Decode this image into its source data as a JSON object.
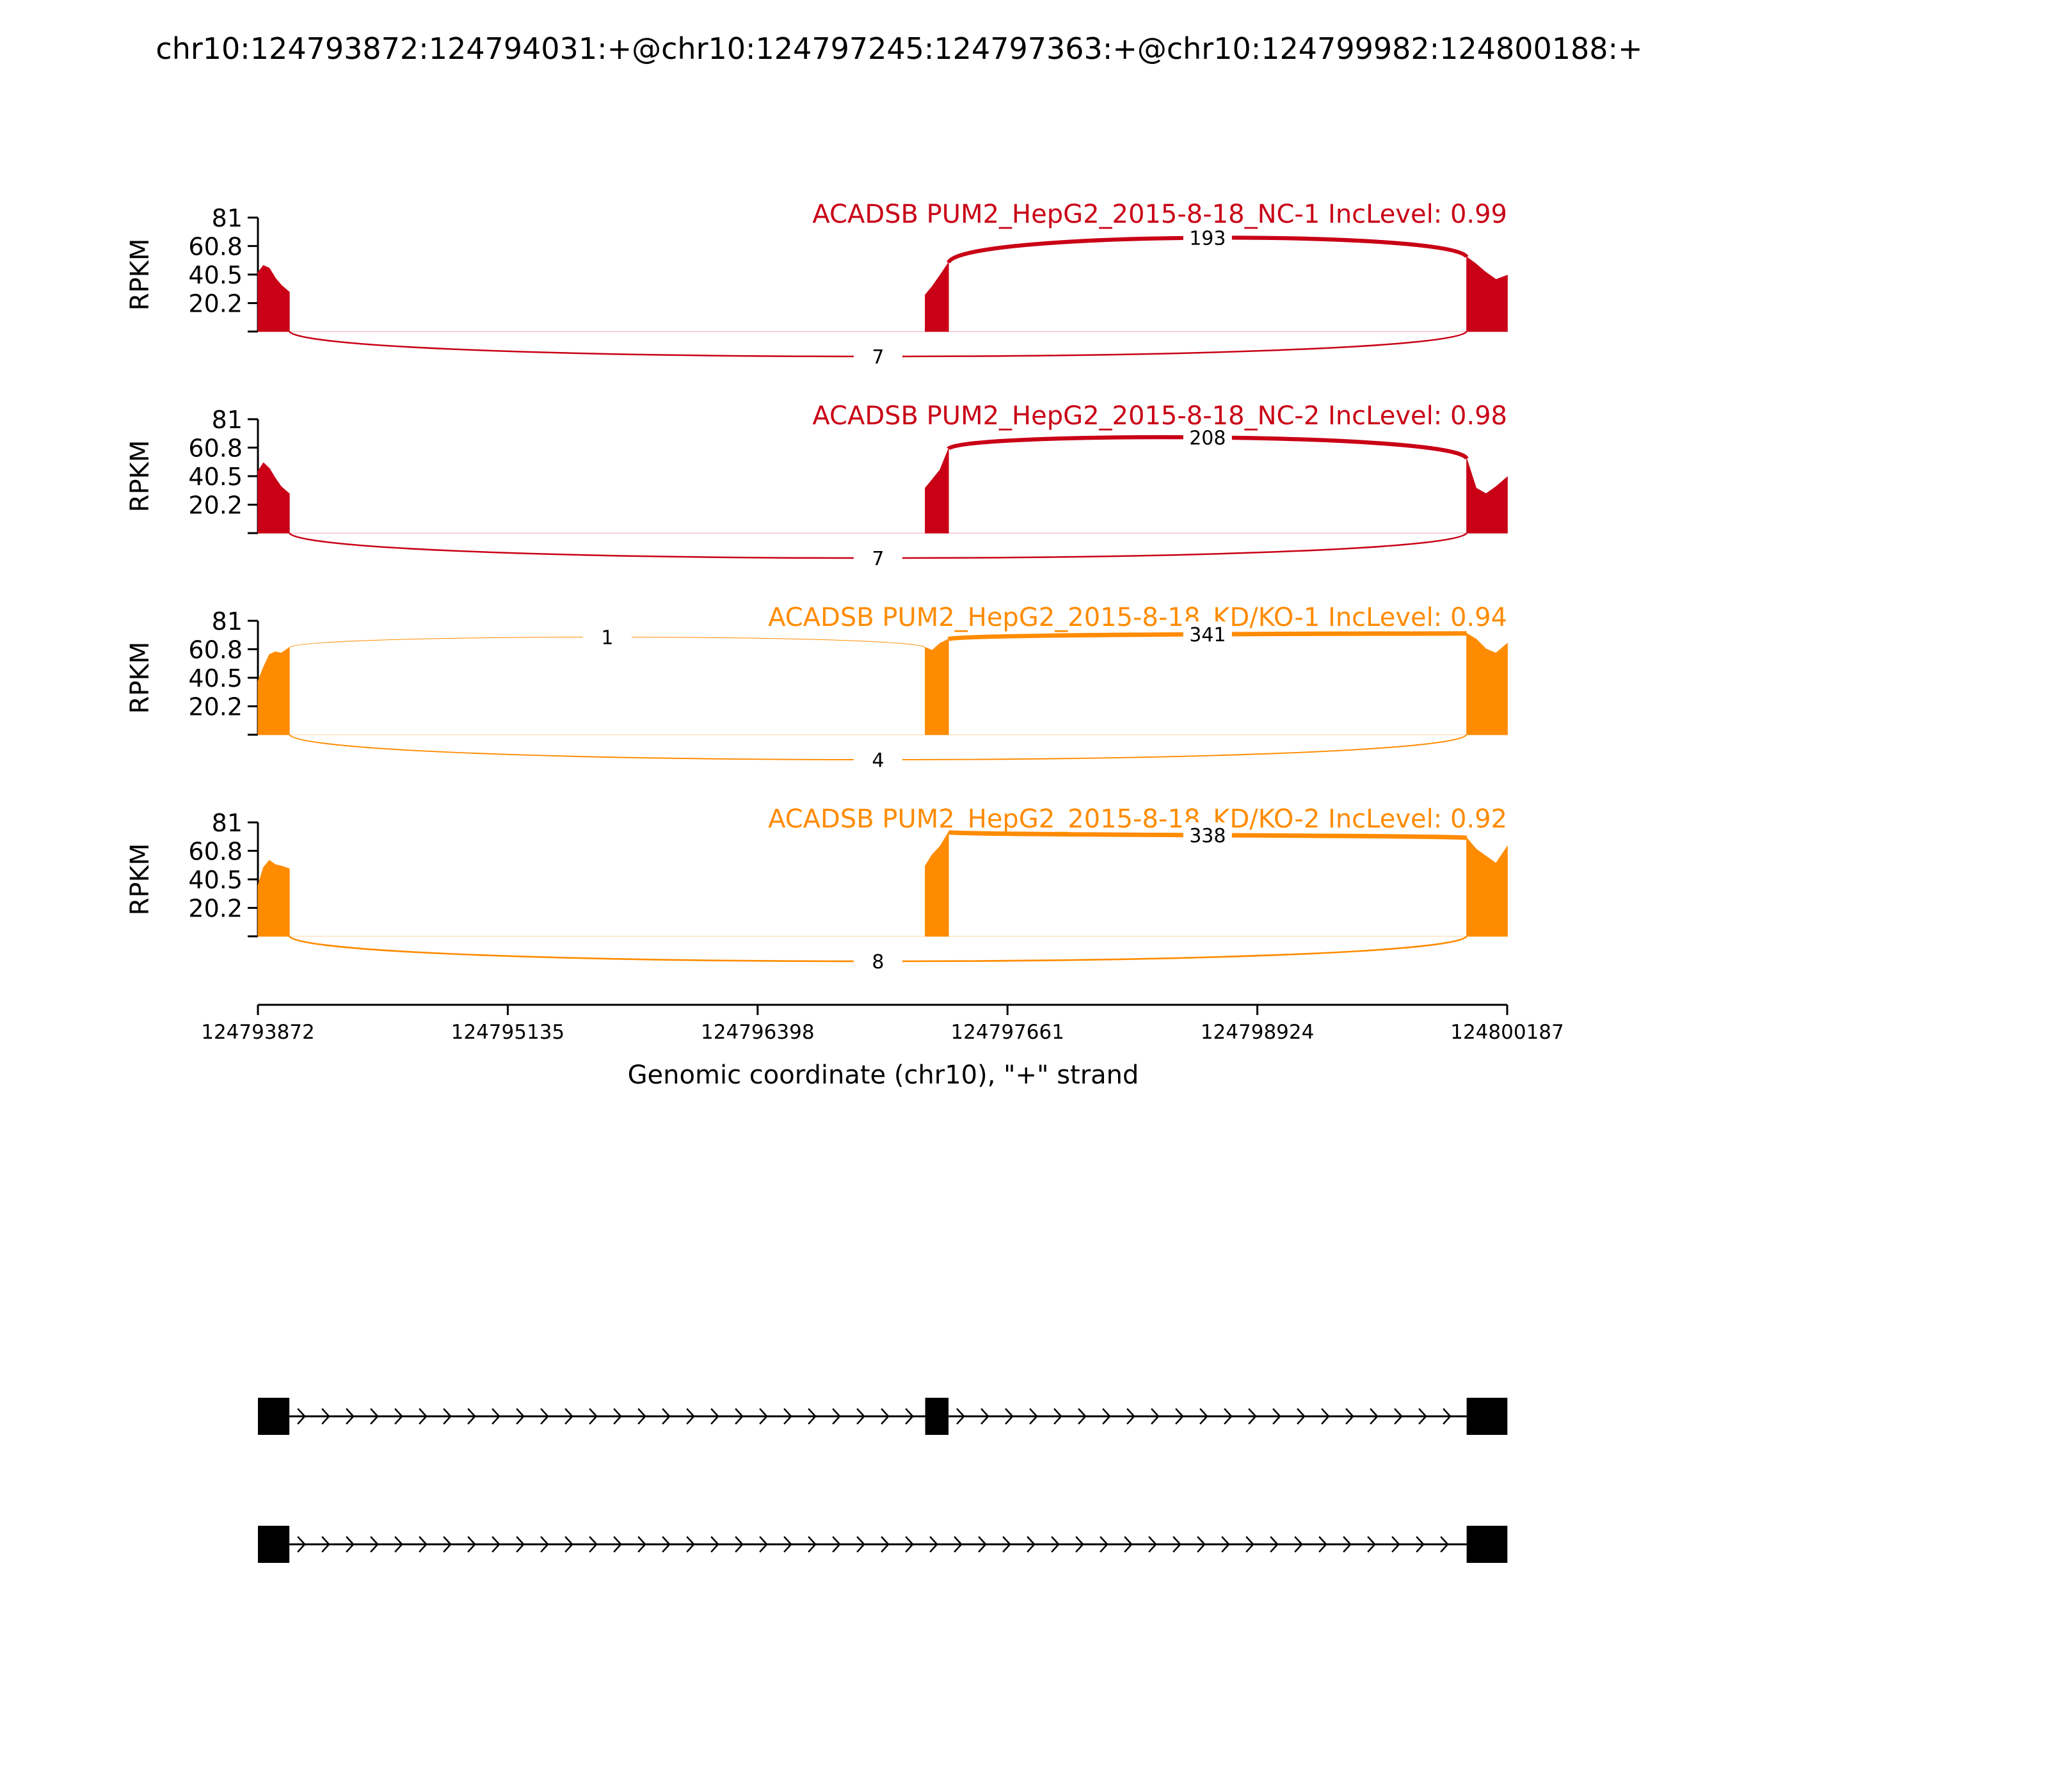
{
  "chart_data": {
    "type": "area",
    "title": "chr10:124793872:124794031:+@chr10:124797245:124797363:+@chr10:124799982:124800188:+",
    "ylabel": "RPKM",
    "xlabel": "Genomic coordinate (chr10), \"+\" strand",
    "xlim": [
      124793872,
      124800187
    ],
    "x_ticks": [
      124793872,
      124795135,
      124796398,
      124797661,
      124798924,
      124800187
    ],
    "x_tick_labels": [
      "124793872",
      "124795135",
      "124796398",
      "124797661",
      "124798924",
      "124800187"
    ],
    "ylim": [
      0,
      81
    ],
    "y_ticks": [
      20.2,
      40.5,
      60.8,
      81
    ],
    "y_tick_labels": [
      "20.2",
      "40.5",
      "60.8",
      "81"
    ],
    "exons": [
      {
        "start": 124793872,
        "end": 124794031
      },
      {
        "start": 124797245,
        "end": 124797363
      },
      {
        "start": 124799982,
        "end": 124800188
      }
    ],
    "colors": {
      "NC": "#c90016",
      "KD": "#ff8b00",
      "structure": "#000000"
    },
    "series": [
      {
        "name": "ACADSB PUM2_HepG2_2015-8-18_NC-1 IncLevel: 0.99",
        "group": "NC",
        "coverage": [
          {
            "x": 124793872,
            "y": 42
          },
          {
            "x": 124793900,
            "y": 47
          },
          {
            "x": 124793930,
            "y": 45
          },
          {
            "x": 124793960,
            "y": 38
          },
          {
            "x": 124793990,
            "y": 33
          },
          {
            "x": 124794031,
            "y": 28
          },
          {
            "x": 124797245,
            "y": 26
          },
          {
            "x": 124797280,
            "y": 32
          },
          {
            "x": 124797320,
            "y": 40
          },
          {
            "x": 124797363,
            "y": 49
          },
          {
            "x": 124799982,
            "y": 53
          },
          {
            "x": 124800030,
            "y": 48
          },
          {
            "x": 124800080,
            "y": 42
          },
          {
            "x": 124800130,
            "y": 37
          },
          {
            "x": 124800188,
            "y": 40
          }
        ],
        "junctions": [
          {
            "from": 124797363,
            "to": 124799982,
            "count": 193,
            "side": "above"
          },
          {
            "from": 124794031,
            "to": 124799982,
            "count": 7,
            "side": "below"
          }
        ]
      },
      {
        "name": "ACADSB PUM2_HepG2_2015-8-18_NC-2 IncLevel: 0.98",
        "group": "NC",
        "coverage": [
          {
            "x": 124793872,
            "y": 44
          },
          {
            "x": 124793900,
            "y": 50
          },
          {
            "x": 124793930,
            "y": 46
          },
          {
            "x": 124793960,
            "y": 39
          },
          {
            "x": 124793990,
            "y": 33
          },
          {
            "x": 124794031,
            "y": 28
          },
          {
            "x": 124797245,
            "y": 32
          },
          {
            "x": 124797280,
            "y": 38
          },
          {
            "x": 124797320,
            "y": 45
          },
          {
            "x": 124797363,
            "y": 60
          },
          {
            "x": 124799982,
            "y": 53
          },
          {
            "x": 124800030,
            "y": 32
          },
          {
            "x": 124800080,
            "y": 28
          },
          {
            "x": 124800130,
            "y": 33
          },
          {
            "x": 124800188,
            "y": 40
          }
        ],
        "junctions": [
          {
            "from": 124797363,
            "to": 124799982,
            "count": 208,
            "side": "above"
          },
          {
            "from": 124794031,
            "to": 124799982,
            "count": 7,
            "side": "below"
          }
        ]
      },
      {
        "name": "ACADSB PUM2_HepG2_2015-8-18_KD/KO-1 IncLevel: 0.94",
        "group": "KD",
        "coverage": [
          {
            "x": 124793872,
            "y": 38
          },
          {
            "x": 124793900,
            "y": 48
          },
          {
            "x": 124793930,
            "y": 57
          },
          {
            "x": 124793960,
            "y": 59
          },
          {
            "x": 124793990,
            "y": 58
          },
          {
            "x": 124794031,
            "y": 62
          },
          {
            "x": 124797245,
            "y": 62
          },
          {
            "x": 124797280,
            "y": 60
          },
          {
            "x": 124797320,
            "y": 65
          },
          {
            "x": 124797363,
            "y": 68
          },
          {
            "x": 124799982,
            "y": 72
          },
          {
            "x": 124800030,
            "y": 68
          },
          {
            "x": 124800080,
            "y": 61
          },
          {
            "x": 124800130,
            "y": 58
          },
          {
            "x": 124800188,
            "y": 65
          }
        ],
        "junctions": [
          {
            "from": 124797363,
            "to": 124799982,
            "count": 341,
            "side": "above"
          },
          {
            "from": 124794031,
            "to": 124797245,
            "count": 1,
            "side": "above"
          },
          {
            "from": 124794031,
            "to": 124799982,
            "count": 4,
            "side": "below"
          }
        ]
      },
      {
        "name": "ACADSB PUM2_HepG2_2015-8-18_KD/KO-2 IncLevel: 0.92",
        "group": "KD",
        "coverage": [
          {
            "x": 124793872,
            "y": 36
          },
          {
            "x": 124793900,
            "y": 49
          },
          {
            "x": 124793930,
            "y": 54
          },
          {
            "x": 124793960,
            "y": 51
          },
          {
            "x": 124793990,
            "y": 50
          },
          {
            "x": 124794031,
            "y": 48
          },
          {
            "x": 124797245,
            "y": 50
          },
          {
            "x": 124797280,
            "y": 58
          },
          {
            "x": 124797320,
            "y": 64
          },
          {
            "x": 124797363,
            "y": 74
          },
          {
            "x": 124799982,
            "y": 70
          },
          {
            "x": 124800030,
            "y": 62
          },
          {
            "x": 124800080,
            "y": 57
          },
          {
            "x": 124800130,
            "y": 52
          },
          {
            "x": 124800188,
            "y": 64
          }
        ],
        "junctions": [
          {
            "from": 124797363,
            "to": 124799982,
            "count": 338,
            "side": "above"
          },
          {
            "from": 124794031,
            "to": 124799982,
            "count": 8,
            "side": "below"
          }
        ]
      }
    ],
    "isoforms": [
      {
        "exons": [
          0,
          1,
          2
        ]
      },
      {
        "exons": [
          0,
          2
        ]
      }
    ]
  }
}
